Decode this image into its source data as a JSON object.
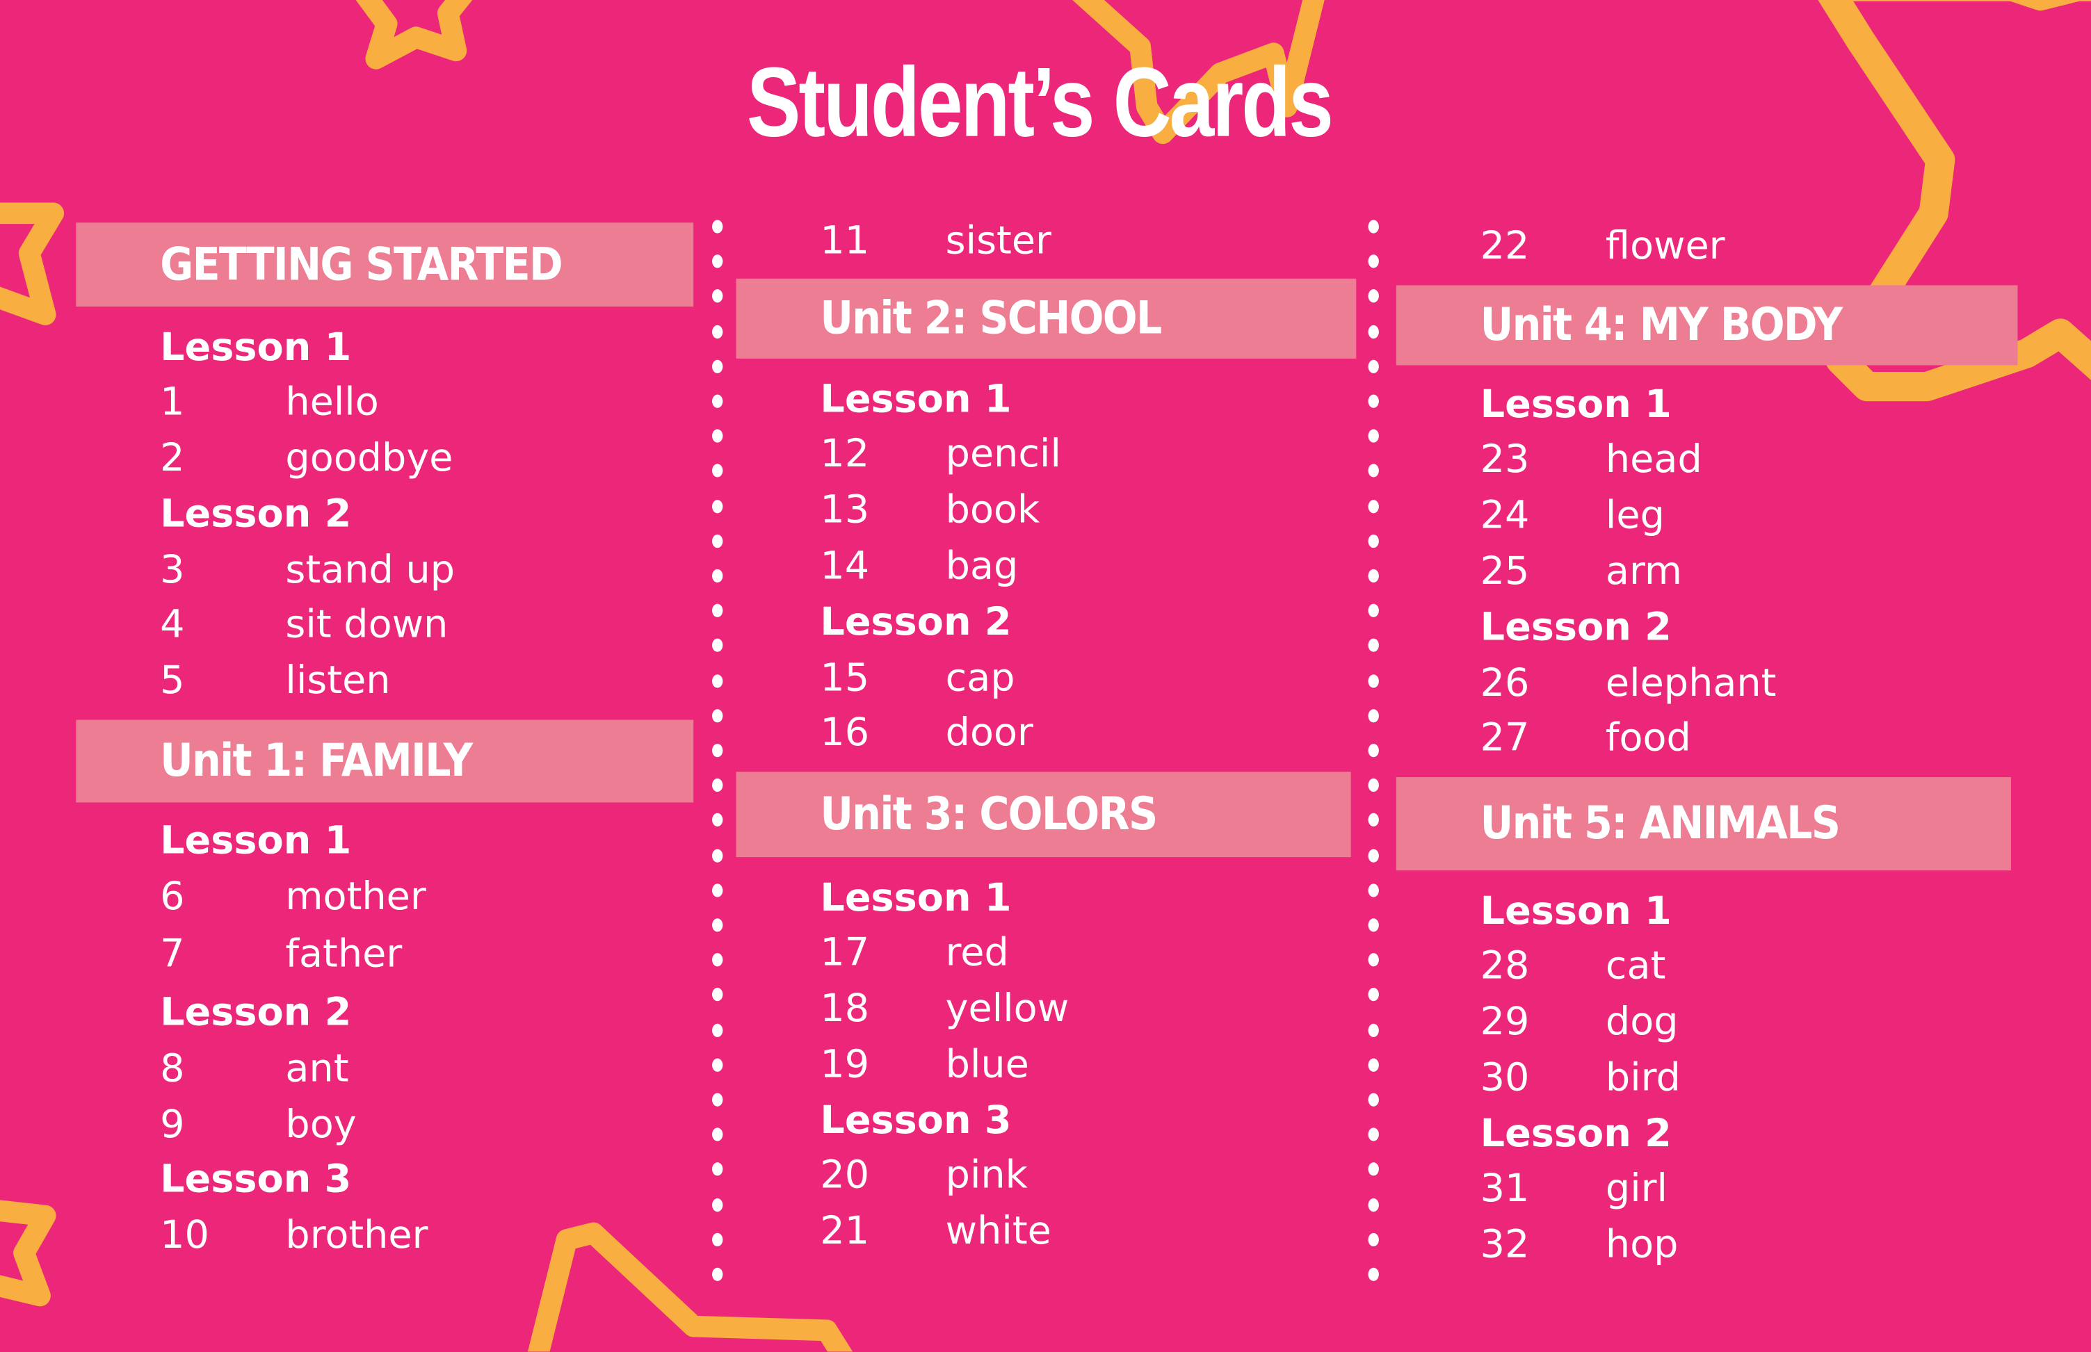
{
  "title": "Student’s Cards",
  "colors": {
    "background": "#EC2779",
    "banner": "#EC7D93",
    "star": "#F9AE42",
    "text": "#FFFFFF"
  },
  "columns": [
    {
      "rows": [
        {
          "type": "banner",
          "label": "GETTING STARTED"
        },
        {
          "type": "lesson",
          "label": "Lesson 1"
        },
        {
          "type": "item",
          "num": "1",
          "word": "hello"
        },
        {
          "type": "item",
          "num": "2",
          "word": "goodbye"
        },
        {
          "type": "lesson",
          "label": "Lesson 2"
        },
        {
          "type": "item",
          "num": "3",
          "word": "stand up"
        },
        {
          "type": "item",
          "num": "4",
          "word": "sit down"
        },
        {
          "type": "item",
          "num": "5",
          "word": "listen"
        },
        {
          "type": "banner",
          "label": "Unit 1: FAMILY"
        },
        {
          "type": "lesson",
          "label": "Lesson 1"
        },
        {
          "type": "item",
          "num": "6",
          "word": "mother"
        },
        {
          "type": "item",
          "num": "7",
          "word": "father"
        },
        {
          "type": "lesson",
          "label": "Lesson 2"
        },
        {
          "type": "item",
          "num": "8",
          "word": "ant"
        },
        {
          "type": "item",
          "num": "9",
          "word": "boy"
        },
        {
          "type": "lesson",
          "label": "Lesson 3"
        },
        {
          "type": "item",
          "num": "10",
          "word": "brother"
        }
      ]
    },
    {
      "rows": [
        {
          "type": "item",
          "num": "11",
          "word": "sister"
        },
        {
          "type": "banner",
          "label": "Unit 2: SCHOOL"
        },
        {
          "type": "lesson",
          "label": "Lesson 1"
        },
        {
          "type": "item",
          "num": "12",
          "word": "pencil"
        },
        {
          "type": "item",
          "num": "13",
          "word": "book"
        },
        {
          "type": "item",
          "num": "14",
          "word": "bag"
        },
        {
          "type": "lesson",
          "label": "Lesson 2"
        },
        {
          "type": "item",
          "num": "15",
          "word": "cap"
        },
        {
          "type": "item",
          "num": "16",
          "word": "door"
        },
        {
          "type": "banner",
          "label": "Unit 3: COLORS"
        },
        {
          "type": "lesson",
          "label": "Lesson 1"
        },
        {
          "type": "item",
          "num": "17",
          "word": "red"
        },
        {
          "type": "item",
          "num": "18",
          "word": "yellow"
        },
        {
          "type": "item",
          "num": "19",
          "word": "blue"
        },
        {
          "type": "lesson",
          "label": "Lesson 3"
        },
        {
          "type": "item",
          "num": "20",
          "word": "pink"
        },
        {
          "type": "item",
          "num": "21",
          "word": "white"
        }
      ]
    },
    {
      "rows": [
        {
          "type": "item",
          "num": "22",
          "word": "flower"
        },
        {
          "type": "banner",
          "label": "Unit 4: MY BODY"
        },
        {
          "type": "lesson",
          "label": "Lesson 1"
        },
        {
          "type": "item",
          "num": "23",
          "word": "head"
        },
        {
          "type": "item",
          "num": "24",
          "word": "leg"
        },
        {
          "type": "item",
          "num": "25",
          "word": "arm"
        },
        {
          "type": "lesson",
          "label": "Lesson 2"
        },
        {
          "type": "item",
          "num": "26",
          "word": "elephant"
        },
        {
          "type": "item",
          "num": "27",
          "word": "food"
        },
        {
          "type": "banner",
          "label": "Unit 5: ANIMALS"
        },
        {
          "type": "lesson",
          "label": "Lesson 1"
        },
        {
          "type": "item",
          "num": "28",
          "word": "cat"
        },
        {
          "type": "item",
          "num": "29",
          "word": "dog"
        },
        {
          "type": "item",
          "num": "30",
          "word": "bird"
        },
        {
          "type": "lesson",
          "label": "Lesson 2"
        },
        {
          "type": "item",
          "num": "31",
          "word": "girl"
        },
        {
          "type": "item",
          "num": "32",
          "word": "hop"
        }
      ]
    }
  ]
}
